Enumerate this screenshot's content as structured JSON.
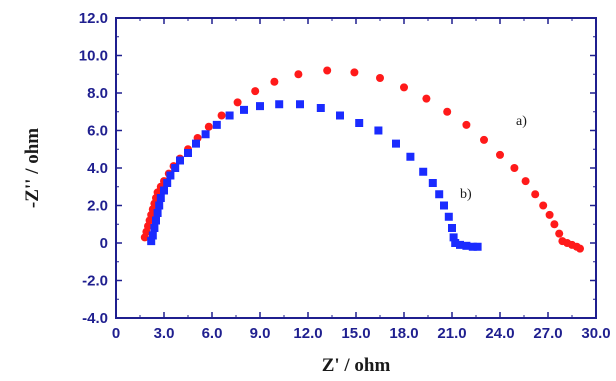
{
  "chart_data": {
    "type": "scatter",
    "title": "",
    "xlabel": "Z' / ohm",
    "ylabel": "-Z'' / ohm",
    "xlim": [
      0,
      30
    ],
    "ylim": [
      -4,
      12
    ],
    "x_ticks": [
      "0",
      "3.0",
      "6.0",
      "9.0",
      "12.0",
      "15.0",
      "18.0",
      "21.0",
      "24.0",
      "27.0",
      "30.0"
    ],
    "y_ticks": [
      "-4.0",
      "-2.0",
      "0",
      "2.0",
      "4.0",
      "6.0",
      "8.0",
      "10.0",
      "12.0"
    ],
    "grid": false,
    "colors": {
      "axis": "#1f1f8f",
      "series_a": "#ff1a1a",
      "series_b": "#1a2bff"
    },
    "series": [
      {
        "label": "a)",
        "marker": "circle",
        "color": "#ff1a1a",
        "points": [
          [
            1.8,
            0.3
          ],
          [
            1.9,
            0.6
          ],
          [
            2.0,
            0.9
          ],
          [
            2.1,
            1.2
          ],
          [
            2.2,
            1.5
          ],
          [
            2.3,
            1.8
          ],
          [
            2.4,
            2.1
          ],
          [
            2.5,
            2.4
          ],
          [
            2.6,
            2.7
          ],
          [
            2.8,
            3.0
          ],
          [
            3.0,
            3.3
          ],
          [
            3.3,
            3.7
          ],
          [
            3.6,
            4.1
          ],
          [
            4.0,
            4.5
          ],
          [
            4.5,
            5.0
          ],
          [
            5.1,
            5.6
          ],
          [
            5.8,
            6.2
          ],
          [
            6.6,
            6.8
          ],
          [
            7.6,
            7.5
          ],
          [
            8.7,
            8.1
          ],
          [
            9.9,
            8.6
          ],
          [
            11.4,
            9.0
          ],
          [
            13.2,
            9.2
          ],
          [
            14.9,
            9.1
          ],
          [
            16.5,
            8.8
          ],
          [
            18.0,
            8.3
          ],
          [
            19.4,
            7.7
          ],
          [
            20.7,
            7.0
          ],
          [
            21.9,
            6.3
          ],
          [
            23.0,
            5.5
          ],
          [
            24.0,
            4.7
          ],
          [
            24.9,
            4.0
          ],
          [
            25.6,
            3.3
          ],
          [
            26.2,
            2.6
          ],
          [
            26.7,
            2.0
          ],
          [
            27.1,
            1.5
          ],
          [
            27.4,
            1.0
          ],
          [
            27.7,
            0.5
          ],
          [
            27.9,
            0.1
          ],
          [
            28.2,
            0.0
          ],
          [
            28.5,
            -0.1
          ],
          [
            28.8,
            -0.2
          ],
          [
            29.0,
            -0.3
          ]
        ]
      },
      {
        "label": "b)",
        "marker": "square",
        "color": "#1a2bff",
        "points": [
          [
            2.2,
            0.1
          ],
          [
            2.3,
            0.4
          ],
          [
            2.4,
            0.8
          ],
          [
            2.5,
            1.2
          ],
          [
            2.6,
            1.6
          ],
          [
            2.7,
            2.0
          ],
          [
            2.8,
            2.4
          ],
          [
            3.0,
            2.8
          ],
          [
            3.2,
            3.2
          ],
          [
            3.4,
            3.6
          ],
          [
            3.7,
            4.0
          ],
          [
            4.0,
            4.4
          ],
          [
            4.5,
            4.8
          ],
          [
            5.0,
            5.3
          ],
          [
            5.6,
            5.8
          ],
          [
            6.3,
            6.3
          ],
          [
            7.1,
            6.8
          ],
          [
            8.0,
            7.1
          ],
          [
            9.0,
            7.3
          ],
          [
            10.2,
            7.4
          ],
          [
            11.5,
            7.4
          ],
          [
            12.8,
            7.2
          ],
          [
            14.0,
            6.8
          ],
          [
            15.2,
            6.4
          ],
          [
            16.4,
            6.0
          ],
          [
            17.5,
            5.3
          ],
          [
            18.4,
            4.6
          ],
          [
            19.2,
            3.8
          ],
          [
            19.8,
            3.2
          ],
          [
            20.2,
            2.6
          ],
          [
            20.5,
            2.0
          ],
          [
            20.8,
            1.4
          ],
          [
            21.0,
            0.8
          ],
          [
            21.1,
            0.3
          ],
          [
            21.2,
            0.0
          ],
          [
            21.5,
            -0.1
          ],
          [
            21.9,
            -0.15
          ],
          [
            22.3,
            -0.2
          ],
          [
            22.6,
            -0.2
          ]
        ]
      }
    ],
    "annotations": [
      {
        "text": "a)",
        "x": 25.0,
        "y": 6.3
      },
      {
        "text": "b)",
        "x": 21.5,
        "y": 2.4
      }
    ]
  }
}
